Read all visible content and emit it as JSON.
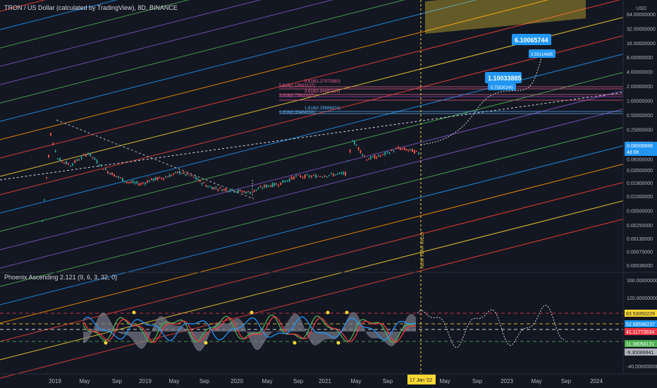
{
  "header": {
    "title": "TRON / US Dollar (calculated by TradingView), 8D, BINANCE",
    "currency": "USD"
  },
  "price_axis": {
    "ticks": [
      "64.00000000",
      "32.00000000",
      "16.00000000",
      "8.00000000",
      "4.00000000",
      "2.00000000",
      "1.00000000",
      "0.50000000",
      "0.25000000",
      "0.13000000",
      "0.06000000",
      "0.03500000",
      "0.01900000",
      "0.01000000",
      "0.00500000",
      "0.00250000",
      "0.00130000",
      "0.00070000",
      "0.00036000"
    ]
  },
  "price_labels": {
    "current_price": "0.08008888",
    "countdown": "4d 6h"
  },
  "annotations": {
    "target_high": "6.10065744",
    "target_high_small": "3.55114685",
    "target_mid": "1.10033885",
    "target_mid_small": "0.75530240",
    "fib_5618": "5.618(1.10633137)",
    "fib_5618b": "5.618(1.27073560)",
    "fib_3618": "3.618(0.73611037)",
    "fib_3618b": "3.618(0.84082117)",
    "fib_1618": "1.618(0.35404550)",
    "fib_1618b": "1.618(0.39886874)",
    "vertical_note": "NEW YEAR RALLY"
  },
  "indicator": {
    "title": "Phoenix Ascending 2.121 (9, 6, 3, 32, 0)",
    "ticks": [
      "160.00000000",
      "120.00000000",
      "-40.00000000"
    ],
    "labels": [
      {
        "text": "83.53050229",
        "color": "#fdd835",
        "text_color": "#131722"
      },
      {
        "text": "52.68598237",
        "color": "#2196f3",
        "text_color": "#ffffff"
      },
      {
        "text": "41.11773534",
        "color": "#f23645",
        "text_color": "#ffffff"
      },
      {
        "text": "11.38058131",
        "color": "#4caf50",
        "text_color": "#ffffff"
      },
      {
        "text": "-9.30089941",
        "color": "#b2b5be",
        "text_color": "#131722"
      }
    ]
  },
  "time_axis": {
    "labels": [
      "2018",
      "May",
      "Sep",
      "2019",
      "May",
      "Sep",
      "2020",
      "May",
      "Sep",
      "2021",
      "May",
      "Sep",
      "May",
      "Sep",
      "2023",
      "May",
      "Sep",
      "2024"
    ],
    "highlight": "17 Jan '22"
  },
  "colors": {
    "background": "#131722",
    "up": "#26a69a",
    "down": "#ef5350",
    "accent": "#2196f3",
    "highlight_box": "#fdd835"
  },
  "chart_data": {
    "type": "line",
    "title": "TRON / US Dollar (calculated by TradingView), 8D, BINANCE",
    "scale": "log",
    "x": [
      "2017-12",
      "2018-01",
      "2018-02",
      "2018-03",
      "2018-05",
      "2018-07",
      "2018-09",
      "2018-11",
      "2019-01",
      "2019-03",
      "2019-05",
      "2019-07",
      "2019-09",
      "2019-11",
      "2020-01",
      "2020-03",
      "2020-05",
      "2020-07",
      "2020-09",
      "2020-11",
      "2021-01",
      "2021-03",
      "2021-04",
      "2021-06",
      "2021-08",
      "2021-10",
      "2021-12",
      "2022-01"
    ],
    "series": [
      {
        "values": [
          0.003,
          0.2,
          0.06,
          0.045,
          0.08,
          0.035,
          0.02,
          0.018,
          0.022,
          0.025,
          0.032,
          0.025,
          0.016,
          0.014,
          0.013,
          0.012,
          0.016,
          0.018,
          0.026,
          0.026,
          0.028,
          0.03,
          0.15,
          0.06,
          0.07,
          0.1,
          0.09,
          0.075
        ]
      }
    ],
    "forecast": {
      "from": "2022-01",
      "to": "2023-05",
      "peak": 3.55114685
    },
    "ylim": [
      0.00036,
      64
    ]
  }
}
